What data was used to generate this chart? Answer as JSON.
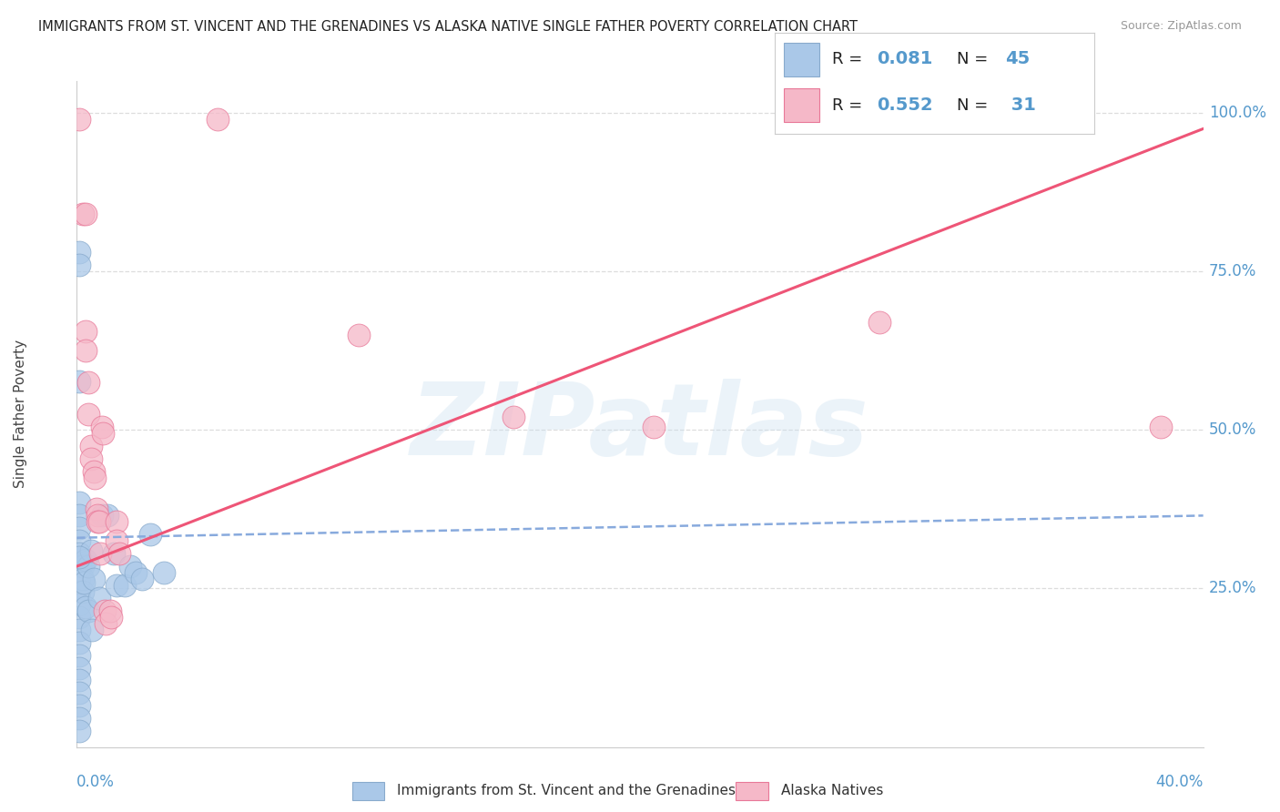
{
  "title": "IMMIGRANTS FROM ST. VINCENT AND THE GRENADINES VS ALASKA NATIVE SINGLE FATHER POVERTY CORRELATION CHART",
  "source": "Source: ZipAtlas.com",
  "ylabel": "Single Father Poverty",
  "legend_blue_R": "0.081",
  "legend_blue_N": "45",
  "legend_pink_R": "0.552",
  "legend_pink_N": "31",
  "legend_label_blue": "Immigrants from St. Vincent and the Grenadines",
  "legend_label_pink": "Alaska Natives",
  "xmin": 0.0,
  "xmax": 0.4,
  "ymin": 0.0,
  "ymax": 1.05,
  "ytick_positions": [
    0.25,
    0.5,
    0.75,
    1.0
  ],
  "ytick_labels": [
    "25.0%",
    "50.0%",
    "75.0%",
    "100.0%"
  ],
  "xtick_positions": [
    0.0,
    0.1,
    0.2,
    0.3,
    0.4
  ],
  "watermark": "ZIPatlas",
  "title_fontsize": 10.5,
  "blue_dot_color": "#aac8e8",
  "pink_dot_color": "#f5b8c8",
  "blue_edge_color": "#88aacc",
  "pink_edge_color": "#e87898",
  "blue_line_color": "#88aadd",
  "pink_line_color": "#ee5577",
  "grid_color": "#dddddd",
  "background_color": "#ffffff",
  "blue_scatter": [
    [
      0.0008,
      0.78
    ],
    [
      0.001,
      0.576
    ],
    [
      0.001,
      0.385
    ],
    [
      0.001,
      0.365
    ],
    [
      0.001,
      0.345
    ],
    [
      0.001,
      0.325
    ],
    [
      0.001,
      0.305
    ],
    [
      0.0012,
      0.285
    ],
    [
      0.001,
      0.265
    ],
    [
      0.001,
      0.245
    ],
    [
      0.001,
      0.225
    ],
    [
      0.001,
      0.205
    ],
    [
      0.001,
      0.185
    ],
    [
      0.001,
      0.165
    ],
    [
      0.001,
      0.145
    ],
    [
      0.001,
      0.125
    ],
    [
      0.001,
      0.105
    ],
    [
      0.001,
      0.085
    ],
    [
      0.001,
      0.065
    ],
    [
      0.001,
      0.045
    ],
    [
      0.001,
      0.025
    ],
    [
      0.002,
      0.285
    ],
    [
      0.002,
      0.265
    ],
    [
      0.002,
      0.245
    ],
    [
      0.0025,
      0.26
    ],
    [
      0.003,
      0.295
    ],
    [
      0.0032,
      0.22
    ],
    [
      0.004,
      0.285
    ],
    [
      0.0042,
      0.215
    ],
    [
      0.005,
      0.31
    ],
    [
      0.0055,
      0.185
    ],
    [
      0.006,
      0.265
    ],
    [
      0.008,
      0.235
    ],
    [
      0.009,
      0.365
    ],
    [
      0.011,
      0.365
    ],
    [
      0.013,
      0.305
    ],
    [
      0.014,
      0.255
    ],
    [
      0.017,
      0.255
    ],
    [
      0.019,
      0.285
    ],
    [
      0.021,
      0.275
    ],
    [
      0.023,
      0.265
    ],
    [
      0.026,
      0.335
    ],
    [
      0.031,
      0.275
    ],
    [
      0.001,
      0.76
    ],
    [
      0.001,
      0.3
    ]
  ],
  "pink_scatter": [
    [
      0.001,
      0.99
    ],
    [
      0.002,
      0.84
    ],
    [
      0.003,
      0.84
    ],
    [
      0.003,
      0.655
    ],
    [
      0.0032,
      0.625
    ],
    [
      0.004,
      0.575
    ],
    [
      0.0042,
      0.525
    ],
    [
      0.005,
      0.475
    ],
    [
      0.0052,
      0.455
    ],
    [
      0.006,
      0.435
    ],
    [
      0.0062,
      0.425
    ],
    [
      0.007,
      0.375
    ],
    [
      0.0072,
      0.365
    ],
    [
      0.0074,
      0.355
    ],
    [
      0.008,
      0.355
    ],
    [
      0.0082,
      0.305
    ],
    [
      0.009,
      0.505
    ],
    [
      0.0092,
      0.495
    ],
    [
      0.01,
      0.215
    ],
    [
      0.0102,
      0.195
    ],
    [
      0.012,
      0.215
    ],
    [
      0.0122,
      0.205
    ],
    [
      0.014,
      0.355
    ],
    [
      0.0142,
      0.325
    ],
    [
      0.015,
      0.305
    ],
    [
      0.05,
      0.99
    ],
    [
      0.1,
      0.65
    ],
    [
      0.155,
      0.52
    ],
    [
      0.205,
      0.505
    ],
    [
      0.285,
      0.67
    ],
    [
      0.385,
      0.505
    ]
  ],
  "blue_trend_x": [
    0.0,
    0.4
  ],
  "blue_trend_y": [
    0.33,
    0.365
  ],
  "pink_trend_x": [
    0.0,
    0.4
  ],
  "pink_trend_y": [
    0.285,
    0.975
  ]
}
